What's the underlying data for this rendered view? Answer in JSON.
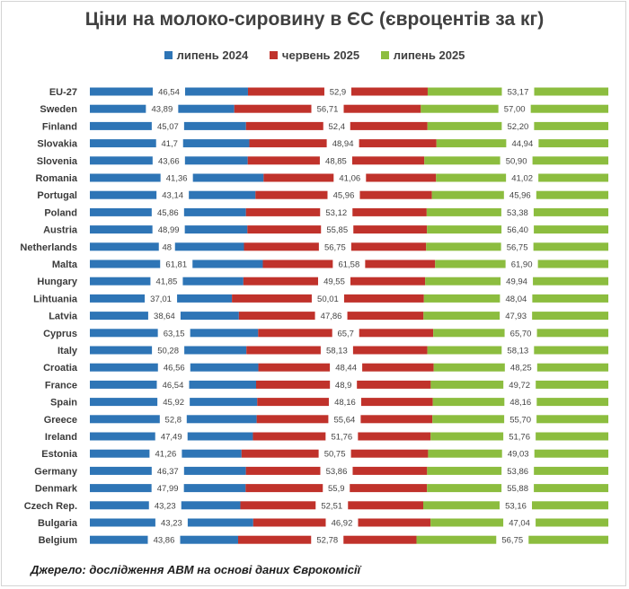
{
  "chart_data": {
    "type": "bar",
    "stacked": "percent",
    "orientation": "horizontal",
    "title": "Ціни на молоко-сировину в ЄС (євроцентів за кг)",
    "categories": [
      "EU-27",
      "Sweden",
      "Finland",
      "Slovakia",
      "Slovenia",
      "Romania",
      "Portugal",
      "Poland",
      "Austria",
      "Netherlands",
      "Malta",
      "Hungary",
      "Lihtuania",
      "Latvia",
      "Cyprus",
      "Italy",
      "Croatia",
      "France",
      "Spain",
      "Greece",
      "Ireland",
      "Estonia",
      "Germany",
      "Denmark",
      "Czech Rep.",
      "Bulgaria",
      "Belgium"
    ],
    "series": [
      {
        "name": "липень 2024",
        "color": "#2e75b6",
        "values": [
          46.54,
          43.89,
          45.07,
          41.7,
          43.66,
          41.36,
          43.14,
          45.86,
          48.99,
          48,
          61.81,
          41.85,
          37.01,
          38.64,
          63.15,
          50.28,
          46.56,
          46.54,
          45.92,
          52.8,
          47.49,
          41.26,
          46.37,
          47.99,
          43.23,
          43.23,
          43.86
        ],
        "labels": [
          "46,54",
          "43,89",
          "45,07",
          "41,7",
          "43,66",
          "41,36",
          "43,14",
          "45,86",
          "48,99",
          "48",
          "61,81",
          "41,85",
          "37,01",
          "38,64",
          "63,15",
          "50,28",
          "46,56",
          "46,54",
          "45,92",
          "52,8",
          "47,49",
          "41,26",
          "46,37",
          "47,99",
          "43,23",
          "43,23",
          "43,86"
        ]
      },
      {
        "name": "червень 2025",
        "color": "#c0322b",
        "values": [
          52.9,
          56.71,
          52.4,
          48.94,
          48.85,
          41.06,
          45.96,
          53.12,
          55.85,
          56.75,
          61.58,
          49.55,
          50.01,
          47.86,
          65.7,
          58.13,
          48.44,
          48.9,
          48.16,
          55.64,
          51.76,
          50.75,
          53.86,
          55.9,
          52.51,
          46.92,
          52.78
        ],
        "labels": [
          "52,9",
          "56,71",
          "52,4",
          "48,94",
          "48,85",
          "41,06",
          "45,96",
          "53,12",
          "55,85",
          "56,75",
          "61,58",
          "49,55",
          "50,01",
          "47,86",
          "65,7",
          "58,13",
          "48,44",
          "48,9",
          "48,16",
          "55,64",
          "51,76",
          "50,75",
          "53,86",
          "55,9",
          "52,51",
          "46,92",
          "52,78"
        ]
      },
      {
        "name": "липень 2025",
        "color": "#8cbd3f",
        "values": [
          53.17,
          57.0,
          52.2,
          44.94,
          50.9,
          41.02,
          45.96,
          53.38,
          56.4,
          56.75,
          61.9,
          49.94,
          48.04,
          47.93,
          65.7,
          58.13,
          48.25,
          49.72,
          48.16,
          55.7,
          51.76,
          49.03,
          53.86,
          55.88,
          53.16,
          47.04,
          56.75
        ],
        "labels": [
          "53,17",
          "57,00",
          "52,20",
          "44,94",
          "50,90",
          "41,02",
          "45,96",
          "53,38",
          "56,40",
          "56,75",
          "61,90",
          "49,94",
          "48,04",
          "47,93",
          "65,70",
          "58,13",
          "48,25",
          "49,72",
          "48,16",
          "55,70",
          "51,76",
          "49,03",
          "53,86",
          "55,88",
          "53,16",
          "47,04",
          "56,75"
        ]
      }
    ],
    "legend_position": "top",
    "grid": false
  },
  "source_note": "Джерело: дослідження АВМ на основі даних Єврокомісії"
}
